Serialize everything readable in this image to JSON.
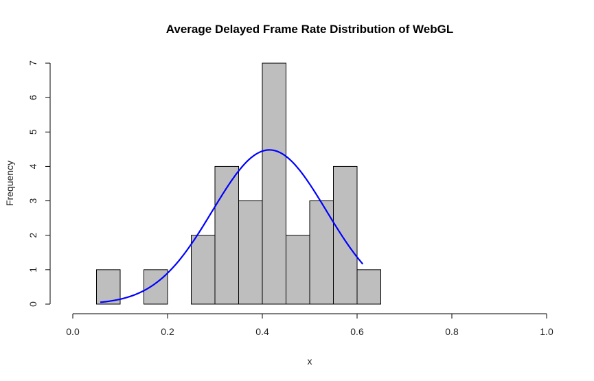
{
  "chart_data": {
    "type": "histogram",
    "title": "Average Delayed Frame Rate Distribution of WebGL",
    "xlabel": "x",
    "ylabel": "Frequency",
    "xlim": [
      0,
      1
    ],
    "ylim": [
      0,
      7
    ],
    "x_ticks": [
      "0.0",
      "0.2",
      "0.4",
      "0.6",
      "0.8",
      "1.0"
    ],
    "y_ticks": [
      "0",
      "1",
      "2",
      "3",
      "4",
      "5",
      "6",
      "7"
    ],
    "bins": [
      {
        "x0": 0.05,
        "x1": 0.1,
        "count": 1
      },
      {
        "x0": 0.1,
        "x1": 0.15,
        "count": 0
      },
      {
        "x0": 0.15,
        "x1": 0.2,
        "count": 1
      },
      {
        "x0": 0.2,
        "x1": 0.25,
        "count": 0
      },
      {
        "x0": 0.25,
        "x1": 0.3,
        "count": 2
      },
      {
        "x0": 0.3,
        "x1": 0.35,
        "count": 4
      },
      {
        "x0": 0.35,
        "x1": 0.4,
        "count": 3
      },
      {
        "x0": 0.4,
        "x1": 0.45,
        "count": 7
      },
      {
        "x0": 0.45,
        "x1": 0.5,
        "count": 2
      },
      {
        "x0": 0.5,
        "x1": 0.55,
        "count": 3
      },
      {
        "x0": 0.55,
        "x1": 0.6,
        "count": 4
      },
      {
        "x0": 0.6,
        "x1": 0.65,
        "count": 1
      }
    ],
    "bar_color": "#bebebe",
    "bar_stroke": "#000000",
    "density_curve": {
      "type": "normal",
      "mean": 0.415,
      "peak_count": 4.48,
      "sd": 0.12,
      "x_range": [
        0.058,
        0.612
      ],
      "color": "#0000ff"
    }
  }
}
